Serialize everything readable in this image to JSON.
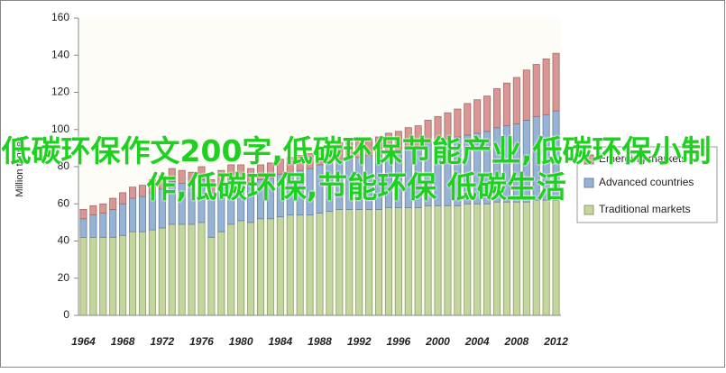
{
  "chart_data": {
    "type": "stacked_bar",
    "y_label": "Million tonnes",
    "categories": [
      "1964",
      null,
      null,
      null,
      "1968",
      null,
      null,
      null,
      "1972",
      null,
      null,
      null,
      "1976",
      null,
      null,
      null,
      "1980",
      null,
      null,
      null,
      "1984",
      null,
      null,
      null,
      "1988",
      null,
      null,
      null,
      "1992",
      null,
      null,
      null,
      "1996",
      null,
      null,
      null,
      "2000",
      null,
      null,
      null,
      "2004",
      null,
      null,
      null,
      "2008",
      null,
      null,
      null,
      "2012"
    ],
    "series": [
      {
        "name": "Traditional markets",
        "color": "#c3d69b",
        "values": [
          42,
          42,
          42,
          42,
          43,
          45,
          45,
          46,
          47,
          49,
          49,
          49,
          50,
          42,
          45,
          49,
          51,
          50,
          52,
          52,
          53,
          54,
          54,
          54,
          55,
          56,
          57,
          57,
          57,
          57,
          57,
          58,
          58,
          58,
          58,
          59,
          59,
          59,
          59,
          60,
          60,
          60,
          61,
          61,
          61,
          61,
          62,
          62,
          62
        ]
      },
      {
        "name": "Advanced countries",
        "color": "#95b3d7",
        "values": [
          10,
          12,
          13,
          15,
          17,
          18,
          19,
          20,
          21,
          23,
          22,
          21,
          23,
          24,
          25,
          24,
          22,
          21,
          21,
          22,
          23,
          23,
          24,
          25,
          26,
          26,
          27,
          27,
          28,
          29,
          29,
          30,
          31,
          32,
          33,
          34,
          35,
          36,
          37,
          37,
          38,
          39,
          40,
          41,
          42,
          44,
          45,
          46,
          48
        ]
      },
      {
        "name": "Emerging markets",
        "color": "#d99694",
        "values": [
          5,
          5,
          5,
          6,
          6,
          6,
          6,
          7,
          7,
          7,
          7,
          7,
          7,
          7,
          8,
          8,
          8,
          8,
          8,
          8,
          8,
          8,
          8,
          8,
          9,
          9,
          9,
          9,
          9,
          9,
          10,
          10,
          10,
          11,
          11,
          12,
          13,
          14,
          15,
          17,
          18,
          19,
          21,
          23,
          25,
          27,
          28,
          30,
          31
        ]
      }
    ],
    "ylim": [
      0,
      160
    ],
    "yticks": [
      0,
      20,
      40,
      60,
      80,
      100,
      120,
      140,
      160
    ],
    "grid": false,
    "legend": "right"
  },
  "overlay_text": "低碳环保作文200字,低碳环保节能产业,低碳环保小制作,低碳环保,节能环保 低碳生活"
}
